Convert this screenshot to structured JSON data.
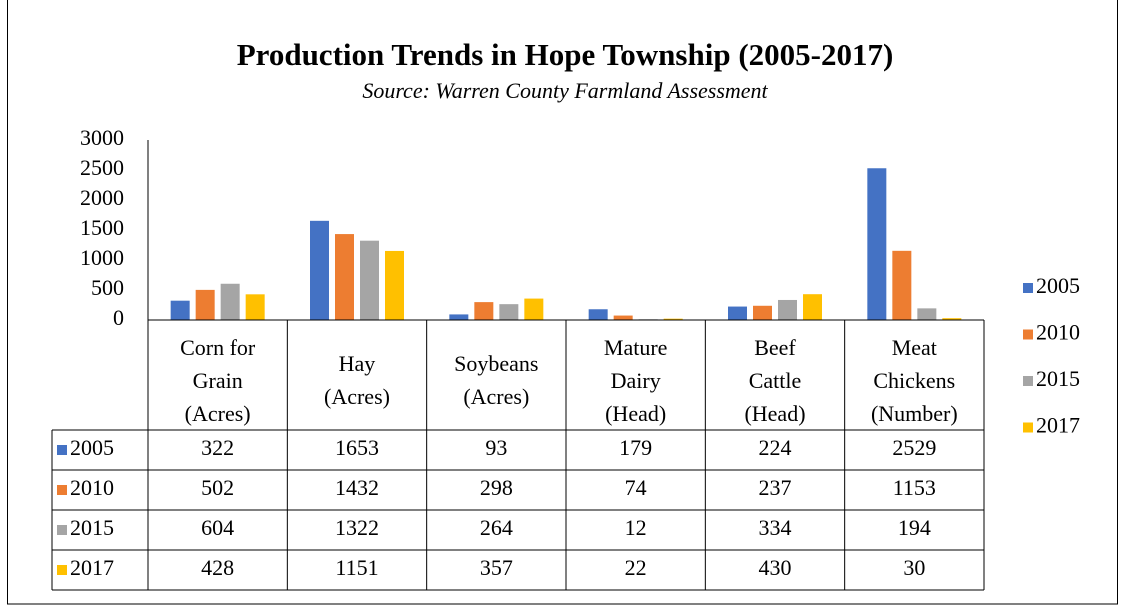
{
  "chart_data": {
    "type": "bar",
    "title": "Production Trends in Hope Township (2005-2017)",
    "subtitle": "Source: Warren County Farmland Assessment",
    "categories": [
      "Corn for\nGrain\n(Acres)",
      "Hay\n(Acres)",
      "Soybeans\n(Acres)",
      "Mature\nDairy\n(Head)",
      "Beef\nCattle\n(Head)",
      "Meat\nChickens\n(Number)"
    ],
    "series": [
      {
        "name": "2005",
        "color": "#4472c4",
        "values": [
          322,
          1653,
          93,
          179,
          224,
          2529
        ]
      },
      {
        "name": "2010",
        "color": "#ed7d31",
        "values": [
          502,
          1432,
          298,
          74,
          237,
          1153
        ]
      },
      {
        "name": "2015",
        "color": "#a5a5a5",
        "values": [
          604,
          1322,
          264,
          12,
          334,
          194
        ]
      },
      {
        "name": "2017",
        "color": "#ffc000",
        "values": [
          428,
          1151,
          357,
          22,
          430,
          30
        ]
      }
    ],
    "ylim": [
      0,
      3000
    ],
    "yticks": [
      0,
      500,
      1000,
      1500,
      2000,
      2500,
      3000
    ],
    "grid": false,
    "legend": "right",
    "data_table": true
  }
}
